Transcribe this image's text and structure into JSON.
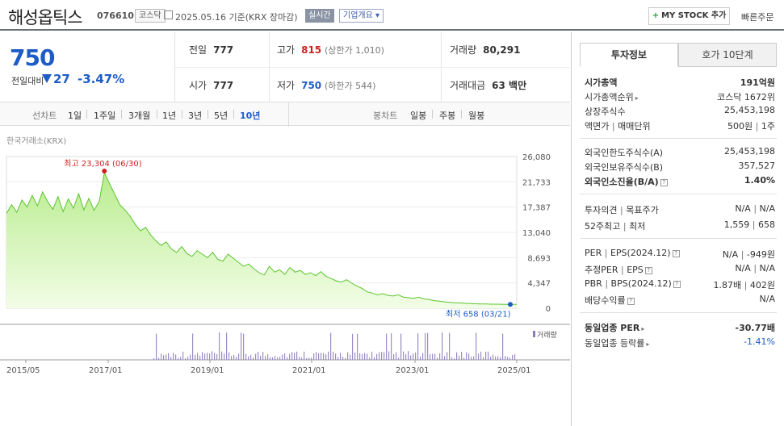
{
  "header": {
    "name": "해성옵틱스",
    "code": "076610",
    "market_badge": "코스닥",
    "date_text": "2025.05.16 기준(KRX 장마감)",
    "live_label": "실시간",
    "corp_label": "기업개요",
    "mystock_label": "MY STOCK 추가",
    "fast_order_label": "빠른주문"
  },
  "price": {
    "current": "750",
    "change_label": "전일대비",
    "change": "27",
    "change_pct": "-3.47%"
  },
  "stats": {
    "prev_label": "전일",
    "prev": "777",
    "high_label": "고가",
    "high": "815",
    "high_sub": "(상한가 1,010)",
    "volume_label": "거래량",
    "volume": "80,291",
    "open_label": "시가",
    "open": "777",
    "low_label": "저가",
    "low": "750",
    "low_sub": "(하한가 544)",
    "amount_label": "거래대금",
    "amount": "63 백만"
  },
  "periods": {
    "line_label": "선차트",
    "items": [
      "1일",
      "1주일",
      "3개월",
      "1년",
      "3년",
      "5년",
      "10년"
    ],
    "selected": "10년",
    "candle_label": "봉차트",
    "candle_items": [
      "일봉",
      "주봉",
      "월봉"
    ]
  },
  "chart_source": "한국거래소(KRX)",
  "chart_data": {
    "type": "area",
    "y_ticks": [
      "26,080",
      "21,733",
      "17,387",
      "13,040",
      "8,693",
      "4,347",
      "0"
    ],
    "ylim": [
      0,
      26080
    ],
    "x_ticks": [
      "2015/05",
      "2017/01",
      "2019/01",
      "2021/01",
      "2023/01",
      "2025/01"
    ],
    "high_annotation": "최고 23,304 (06/30)",
    "low_annotation": "최저 658 (03/21)",
    "volume_legend": "거래량",
    "series": [
      {
        "values": [
          16300,
          17800,
          16500,
          18600,
          17400,
          19400,
          17600,
          20000,
          18300,
          17000,
          19200,
          16600,
          18800,
          17200,
          19700,
          16900,
          18900,
          16800,
          18400,
          23304,
          21400,
          19600,
          17800,
          16900,
          15800,
          14400,
          13300,
          13900,
          12600,
          11600,
          10800,
          11400,
          10200,
          9600,
          10600,
          9400,
          8900,
          9900,
          9300,
          8700,
          9600,
          8400,
          8100,
          9300,
          8600,
          7900,
          7200,
          7600,
          6800,
          6100,
          5700,
          7200,
          6200,
          6600,
          5800,
          7000,
          6200,
          6500,
          5800,
          6100,
          5600,
          6300,
          5500,
          5100,
          4700,
          4500,
          4900,
          4300,
          3800,
          3400,
          2800,
          2600,
          2300,
          2500,
          2200,
          2100,
          2300,
          1900,
          1800,
          1700,
          1900,
          1600,
          1500,
          1300,
          1200,
          1100,
          1000,
          950,
          900,
          850,
          800,
          760,
          740,
          720,
          700,
          690,
          680,
          670,
          660,
          658
        ]
      }
    ]
  },
  "side": {
    "tab_invest": "투자정보",
    "tab_hoga": "호가 10단계",
    "market_cap_label": "시가총액",
    "market_cap": "191억원",
    "rank_label": "시가총액순위",
    "rank": "코스닥 1672위",
    "shares_label": "상장주식수",
    "shares": "25,453,198",
    "par_label": "액면가",
    "unit_label": "매매단위",
    "par": "500원",
    "unit": "1주",
    "foreign_limit_label": "외국인한도주식수(A)",
    "foreign_limit": "25,453,198",
    "foreign_hold_label": "외국인보유주식수(B)",
    "foreign_hold": "357,527",
    "foreign_ratio_label": "외국인소진율(B/A)",
    "foreign_ratio": "1.40%",
    "opinion_label": "투자의견",
    "target_label": "목표주가",
    "opinion": "N/A",
    "target": "N/A",
    "w52_high_label": "52주최고",
    "w52_low_label": "최저",
    "w52_high": "1,559",
    "w52_low": "658",
    "per_label": "PER",
    "eps_label": "EPS(2024.12)",
    "per": "N/A",
    "eps": "-949원",
    "est_per_label": "추정PER",
    "est_eps_label": "EPS",
    "est_per": "N/A",
    "est_eps": "N/A",
    "pbr_label": "PBR",
    "bps_label": "BPS(2024.12)",
    "pbr": "1.87배",
    "bps": "402원",
    "div_label": "배당수익률",
    "div": "N/A",
    "sector_per_label": "동일업종 PER",
    "sector_per": "-30.77배",
    "sector_rate_label": "동일업종 등락률",
    "sector_rate": "-1.41%"
  }
}
